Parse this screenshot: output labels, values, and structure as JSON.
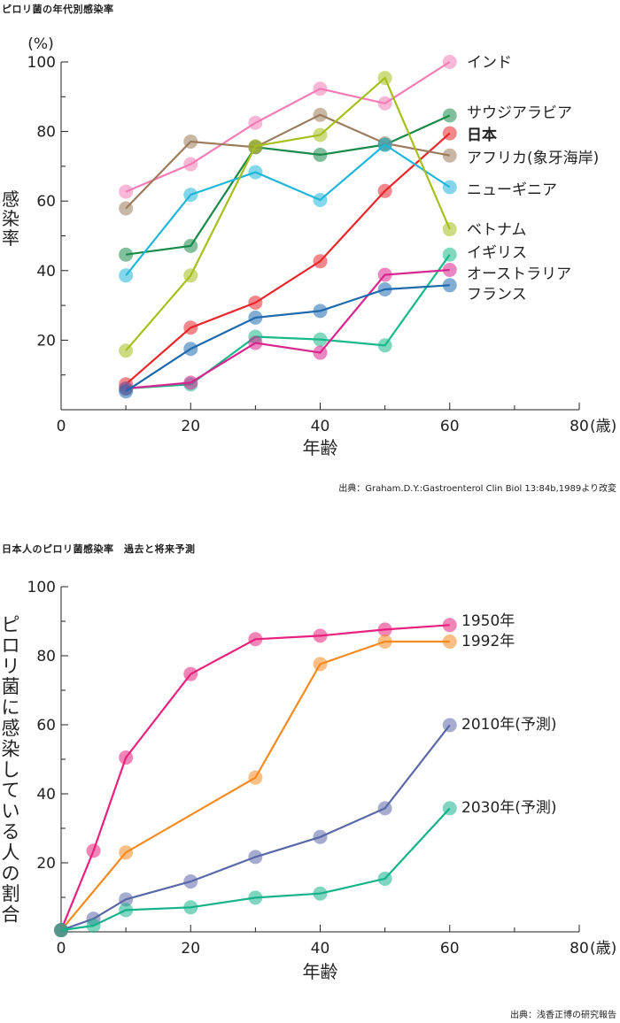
{
  "chart1": {
    "heading": "ピロリ菌の年代別感染率",
    "source": "出典：Graham.D.Y.:Gastroenterol Clin Biol 13:84b,1989より改変",
    "chart_data": {
      "type": "line",
      "x": [
        10,
        20,
        30,
        40,
        50,
        60
      ],
      "xlim": [
        0,
        80
      ],
      "ylim": [
        0,
        100
      ],
      "xticks": [
        "0",
        "20",
        "40",
        "60",
        "80"
      ],
      "yticks": [
        "20",
        "40",
        "60",
        "80",
        "100"
      ],
      "x_unit": "(歳)",
      "y_unit": "(%)",
      "xlabel": "年齢",
      "ylabel": "感染率",
      "grid": false,
      "series": [
        {
          "name": "インド",
          "color": "#f47cb6",
          "values": [
            62.7,
            70.6,
            82.5,
            92.3,
            88.1,
            100
          ]
        },
        {
          "name": "サウジアラビア",
          "color": "#1a8a4a",
          "values": [
            44.6,
            47.1,
            75.5,
            73.3,
            76.2,
            84.6
          ]
        },
        {
          "name": "日本",
          "color": "#e8262b",
          "values": [
            7.3,
            23.6,
            30.8,
            42.7,
            62.9,
            79.5
          ]
        },
        {
          "name": "アフリカ(象牙海岸)",
          "color": "#9b7b5b",
          "values": [
            57.9,
            77.1,
            75.5,
            84.8,
            76.6,
            73.1
          ]
        },
        {
          "name": "ニューギニア",
          "color": "#1fb7da",
          "values": [
            38.6,
            61.8,
            68.3,
            60.3,
            76.2,
            64.0
          ]
        },
        {
          "name": "ベトナム",
          "color": "#a6bf1a",
          "values": [
            17.0,
            38.6,
            75.8,
            79.0,
            95.4,
            51.9
          ]
        },
        {
          "name": "イギリス",
          "color": "#17b88a",
          "values": [
            6.1,
            7.3,
            21.0,
            20.2,
            18.5,
            44.6
          ]
        },
        {
          "name": "オーストラリア",
          "color": "#d9258f",
          "values": [
            6.1,
            7.8,
            19.2,
            16.4,
            38.8,
            40.2
          ]
        },
        {
          "name": "フランス",
          "color": "#1e6aae",
          "values": [
            5.3,
            17.5,
            26.5,
            28.4,
            34.6,
            35.8
          ]
        }
      ]
    }
  },
  "chart2": {
    "heading": "日本人のピロリ菌感染率　過去と将来予測",
    "source": "出典：浅香正博の研究報告",
    "chart_data": {
      "type": "line",
      "xlim": [
        0,
        80
      ],
      "ylim": [
        0,
        100
      ],
      "xticks": [
        "0",
        "20",
        "40",
        "60",
        "80"
      ],
      "yticks": [
        "20",
        "40",
        "60",
        "80",
        "100"
      ],
      "x_unit": "(歳)",
      "xlabel": "年齢",
      "ylabel": "ピロリ菌に感染している人の割合",
      "grid": false,
      "series": [
        {
          "name": "1950年",
          "color": "#e8217e",
          "points": [
            [
              0,
              0.5
            ],
            [
              5,
              23.5
            ],
            [
              10,
              50.5
            ],
            [
              20,
              74.7
            ],
            [
              30,
              84.8
            ],
            [
              40,
              85.8
            ],
            [
              50,
              87.6
            ],
            [
              60,
              88.9
            ]
          ]
        },
        {
          "name": "1992年",
          "color": "#f58a1f",
          "points": [
            [
              0,
              0.5
            ],
            [
              10,
              23.0
            ],
            [
              30,
              44.7
            ],
            [
              40,
              77.6
            ],
            [
              50,
              84.1
            ],
            [
              60,
              84.1
            ]
          ]
        },
        {
          "name": "2010年(予測)",
          "color": "#5b68a8",
          "points": [
            [
              0,
              0.5
            ],
            [
              5,
              3.8
            ],
            [
              10,
              9.4
            ],
            [
              20,
              14.6
            ],
            [
              30,
              21.7
            ],
            [
              40,
              27.5
            ],
            [
              50,
              35.8
            ],
            [
              60,
              59.9
            ]
          ]
        },
        {
          "name": "2030年(予測)",
          "color": "#16b38a",
          "points": [
            [
              0,
              0.5
            ],
            [
              5,
              1.8
            ],
            [
              10,
              6.3
            ],
            [
              20,
              7.1
            ],
            [
              30,
              9.9
            ],
            [
              40,
              11.1
            ],
            [
              50,
              15.4
            ],
            [
              60,
              35.8
            ]
          ]
        }
      ]
    }
  }
}
